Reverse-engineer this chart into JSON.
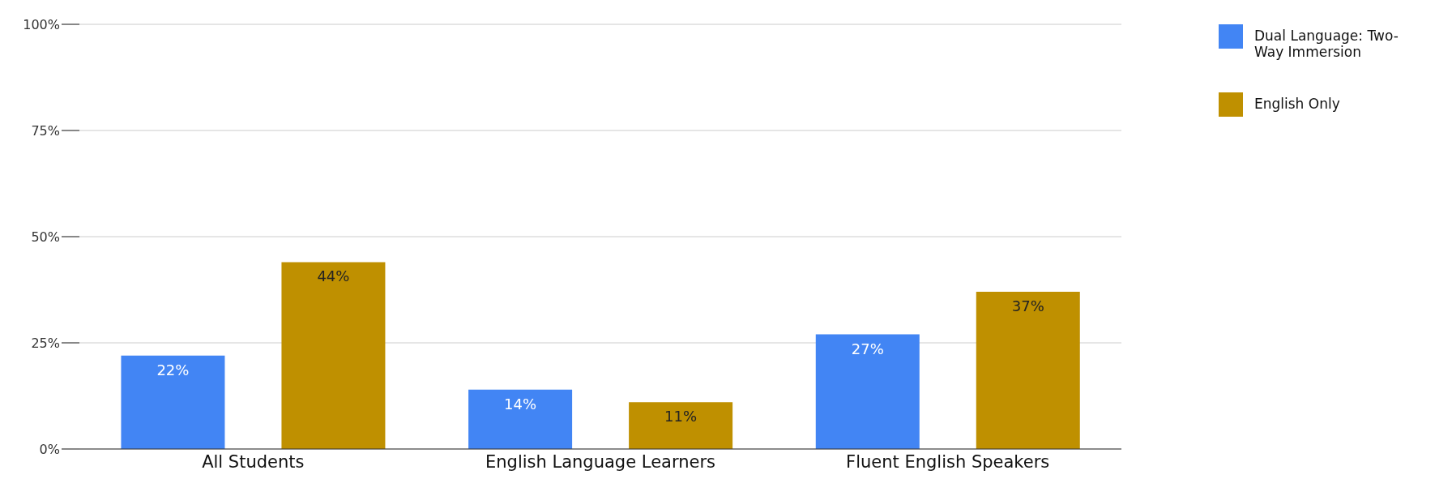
{
  "chart_data": {
    "type": "bar",
    "categories": [
      "All Students",
      "English Language Learners",
      "Fluent English Speakers"
    ],
    "series": [
      {
        "name": "Dual Language: Two-Way Immersion",
        "color": "#4285f4",
        "values": [
          22,
          14,
          27
        ]
      },
      {
        "name": "English Only",
        "color": "#bf9000",
        "values": [
          44,
          11,
          37
        ]
      }
    ],
    "ylim": [
      0,
      100
    ],
    "yticks": [
      {
        "value": 0,
        "label": "0%"
      },
      {
        "value": 25,
        "label": "25%"
      },
      {
        "value": 50,
        "label": "50%"
      },
      {
        "value": 75,
        "label": "75%"
      },
      {
        "value": 100,
        "label": "100%"
      }
    ],
    "value_labels": [
      [
        "22%",
        "14%",
        "27%"
      ],
      [
        "44%",
        "11%",
        "37%"
      ]
    ],
    "grid": "y",
    "legend": "top right"
  }
}
